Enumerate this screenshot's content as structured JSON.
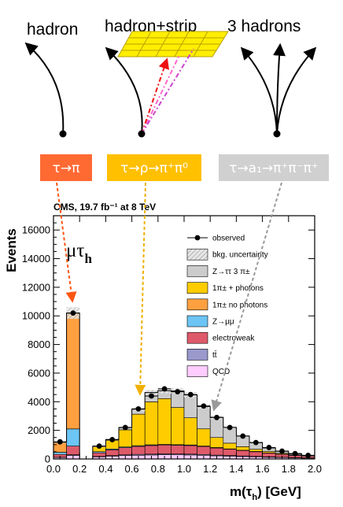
{
  "diagram": {
    "topology_labels": [
      "hadron",
      "hadron+strip",
      "3 hadrons"
    ],
    "decay_modes": [
      {
        "label": "τ→π",
        "color": "#ff6a33",
        "text_color": "#ffffff"
      },
      {
        "label": "τ→ρ→π⁺π⁰",
        "color": "#ffc000",
        "text_color": "#ffffff"
      },
      {
        "label": "τ→a₁→π⁺π⁻π⁺",
        "color": "#d0d0d0",
        "text_color": "#ffffff"
      }
    ]
  },
  "chart_data": {
    "type": "bar",
    "stacked": true,
    "title": "CMS, 19.7 fb⁻¹ at 8 TeV",
    "channel_label": "μτ",
    "channel_sub": "h",
    "xlabel": "m(τ",
    "xlabel_sub": "h",
    "xlabel_tail": ") [GeV]",
    "ylabel": "Events",
    "xlim": [
      0.0,
      2.0
    ],
    "ylim": [
      0,
      17000
    ],
    "x_ticks": [
      "0.0",
      "0.2",
      "0.4",
      "0.6",
      "0.8",
      "1.0",
      "1.2",
      "1.4",
      "1.6",
      "1.8",
      "2.0"
    ],
    "y_ticks": [
      "0",
      "2000",
      "4000",
      "6000",
      "8000",
      "10000",
      "12000",
      "14000",
      "16000"
    ],
    "bin_width": 0.1,
    "bins": [
      0.05,
      0.15,
      0.25,
      0.35,
      0.45,
      0.55,
      0.65,
      0.75,
      0.85,
      0.95,
      1.05,
      1.15,
      1.25,
      1.35,
      1.45,
      1.55,
      1.65,
      1.75,
      1.85,
      1.95
    ],
    "series": [
      {
        "name": "QCD",
        "color": "#ffccff",
        "values": [
          100,
          250,
          0,
          150,
          200,
          240,
          260,
          280,
          300,
          290,
          280,
          260,
          220,
          200,
          170,
          150,
          120,
          100,
          80,
          60
        ]
      },
      {
        "name": "tt̄",
        "color": "#9999cc",
        "values": [
          20,
          50,
          0,
          30,
          40,
          50,
          60,
          60,
          60,
          60,
          60,
          55,
          50,
          45,
          40,
          35,
          30,
          25,
          20,
          15
        ]
      },
      {
        "name": "electroweak",
        "color": "#de5a6a",
        "values": [
          200,
          600,
          0,
          250,
          400,
          500,
          560,
          600,
          620,
          610,
          600,
          560,
          500,
          440,
          380,
          320,
          260,
          200,
          150,
          110
        ]
      },
      {
        "name": "Z→μμ",
        "color": "#6dc5f5",
        "values": [
          150,
          1200,
          0,
          80,
          60,
          50,
          50,
          50,
          40,
          40,
          40,
          30,
          30,
          20,
          20,
          20,
          10,
          10,
          10,
          10
        ]
      },
      {
        "name": "1π± no photons",
        "color": "#ffa040",
        "values": [
          700,
          8100,
          0,
          0,
          0,
          0,
          0,
          0,
          0,
          0,
          0,
          0,
          0,
          0,
          0,
          0,
          0,
          0,
          0,
          0
        ]
      },
      {
        "name": "1π± + photons",
        "color": "#ffcc00",
        "values": [
          0,
          0,
          0,
          350,
          600,
          1200,
          2200,
          3000,
          3200,
          2600,
          1900,
          1200,
          700,
          400,
          250,
          150,
          100,
          60,
          30,
          20
        ]
      },
      {
        "name": "3 π±",
        "color": "#cccccc",
        "values": [
          0,
          0,
          0,
          30,
          60,
          150,
          350,
          650,
          550,
          1150,
          1600,
          1560,
          1400,
          1100,
          740,
          470,
          250,
          140,
          70,
          40
        ]
      }
    ],
    "observed": {
      "name": "observed",
      "x": [
        0.05,
        0.15,
        0.35,
        0.45,
        0.55,
        0.65,
        0.75,
        0.85,
        0.95,
        1.05,
        1.15,
        1.25,
        1.35,
        1.45,
        1.55,
        1.65,
        1.75,
        1.85,
        1.95
      ],
      "y": [
        1200,
        10200,
        900,
        1350,
        2200,
        3500,
        4400,
        4900,
        4700,
        4500,
        3700,
        2900,
        2200,
        1600,
        1150,
        800,
        550,
        380,
        250
      ]
    },
    "uncertainty_label": "bkg. uncertainty",
    "legend": [
      {
        "label": "observed",
        "kind": "point",
        "color": "#000000"
      },
      {
        "label": "bkg. uncertainty",
        "kind": "hatch",
        "color": "#d8d8d8"
      },
      {
        "label": "Z→ττ   3 π±",
        "kind": "box",
        "color": "#cccccc"
      },
      {
        "label": "1π± + photons",
        "kind": "box",
        "color": "#ffcc00"
      },
      {
        "label": "1π± no photons",
        "kind": "box",
        "color": "#ffa040"
      },
      {
        "label": "Z→μμ",
        "kind": "box",
        "color": "#6dc5f5"
      },
      {
        "label": "electroweak",
        "kind": "box",
        "color": "#de5a6a"
      },
      {
        "label": "tt̄",
        "kind": "box",
        "color": "#9999cc"
      },
      {
        "label": "QCD",
        "kind": "box",
        "color": "#ffccff"
      }
    ]
  }
}
